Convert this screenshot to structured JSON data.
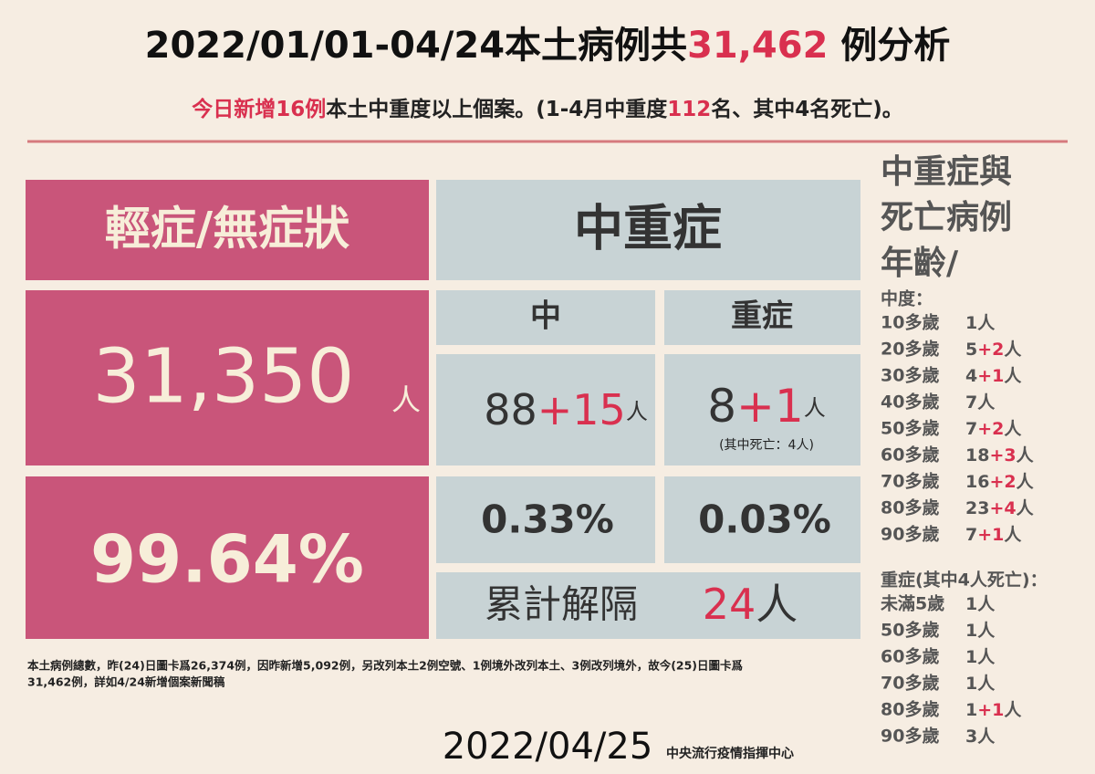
{
  "header": {
    "title": [
      "2022/01/01-04/24本土病例共",
      "31,462",
      " 例分析"
    ],
    "subtitle": [
      "今日新增16例",
      "本土中重度以上個案。(1-4月中重度",
      "112",
      "名、其中4名死亡)。"
    ]
  },
  "mild": {
    "heading": "輕症/無症狀",
    "count": "31,350",
    "unit": "人",
    "percent": "99.64%"
  },
  "serious": {
    "heading": "中重症",
    "moderate": {
      "label": "中",
      "base": "88",
      "add": "+15",
      "unit": "人",
      "percent": "0.33%"
    },
    "severe": {
      "label": "重症",
      "base": "8",
      "add": "+1",
      "unit": "人",
      "note": "(其中死亡：4人)",
      "percent": "0.03%"
    },
    "released": {
      "label": "累計解隔",
      "value": "24",
      "unit": "人"
    }
  },
  "ages": {
    "heading": [
      "中重症與",
      "死亡病例",
      "年齡/"
    ],
    "moderate_label": "中度：",
    "moderate": [
      {
        "age": "10多歲",
        "base": "1",
        "unit": "人"
      },
      {
        "age": "20多歲",
        "base": "5",
        "add": "+2",
        "unit": "人"
      },
      {
        "age": "30多歲",
        "base": "4",
        "add": "+1",
        "unit": "人"
      },
      {
        "age": "40多歲",
        "base": "7",
        "unit": "人"
      },
      {
        "age": "50多歲",
        "base": "7",
        "add": "+2",
        "unit": "人"
      },
      {
        "age": "60多歲",
        "base": "18",
        "add": "+3",
        "unit": "人"
      },
      {
        "age": "70多歲",
        "base": "16",
        "add": "+2",
        "unit": "人"
      },
      {
        "age": "80多歲",
        "base": "23",
        "add": "+4",
        "unit": "人"
      },
      {
        "age": "90多歲",
        "base": "7",
        "add": "+1",
        "unit": "人"
      }
    ],
    "severe_label": "重症(其中4人死亡)：",
    "severe": [
      {
        "age": "未滿5歲",
        "base": "1",
        "unit": "人"
      },
      {
        "age": "50多歲",
        "base": "1",
        "unit": "人"
      },
      {
        "age": "60多歲",
        "base": "1",
        "unit": "人"
      },
      {
        "age": "70多歲",
        "base": "1",
        "unit": "人"
      },
      {
        "age": "80多歲",
        "base": "1",
        "add": "+1",
        "unit": "人"
      },
      {
        "age": "90多歲",
        "base": "3",
        "unit": "人"
      }
    ]
  },
  "footnote": [
    "本土病例總數，昨(24)日圖卡爲26,374例，因昨新增5,092例，另改列本土2例空號、1例境外改列本土、3例改列境外，故今(25)日圖卡爲",
    "31,462例，詳如4/24新增個案新聞稿"
  ],
  "footer": {
    "date": "2022/04/25",
    "org": "中央流行疫情指揮中心"
  }
}
